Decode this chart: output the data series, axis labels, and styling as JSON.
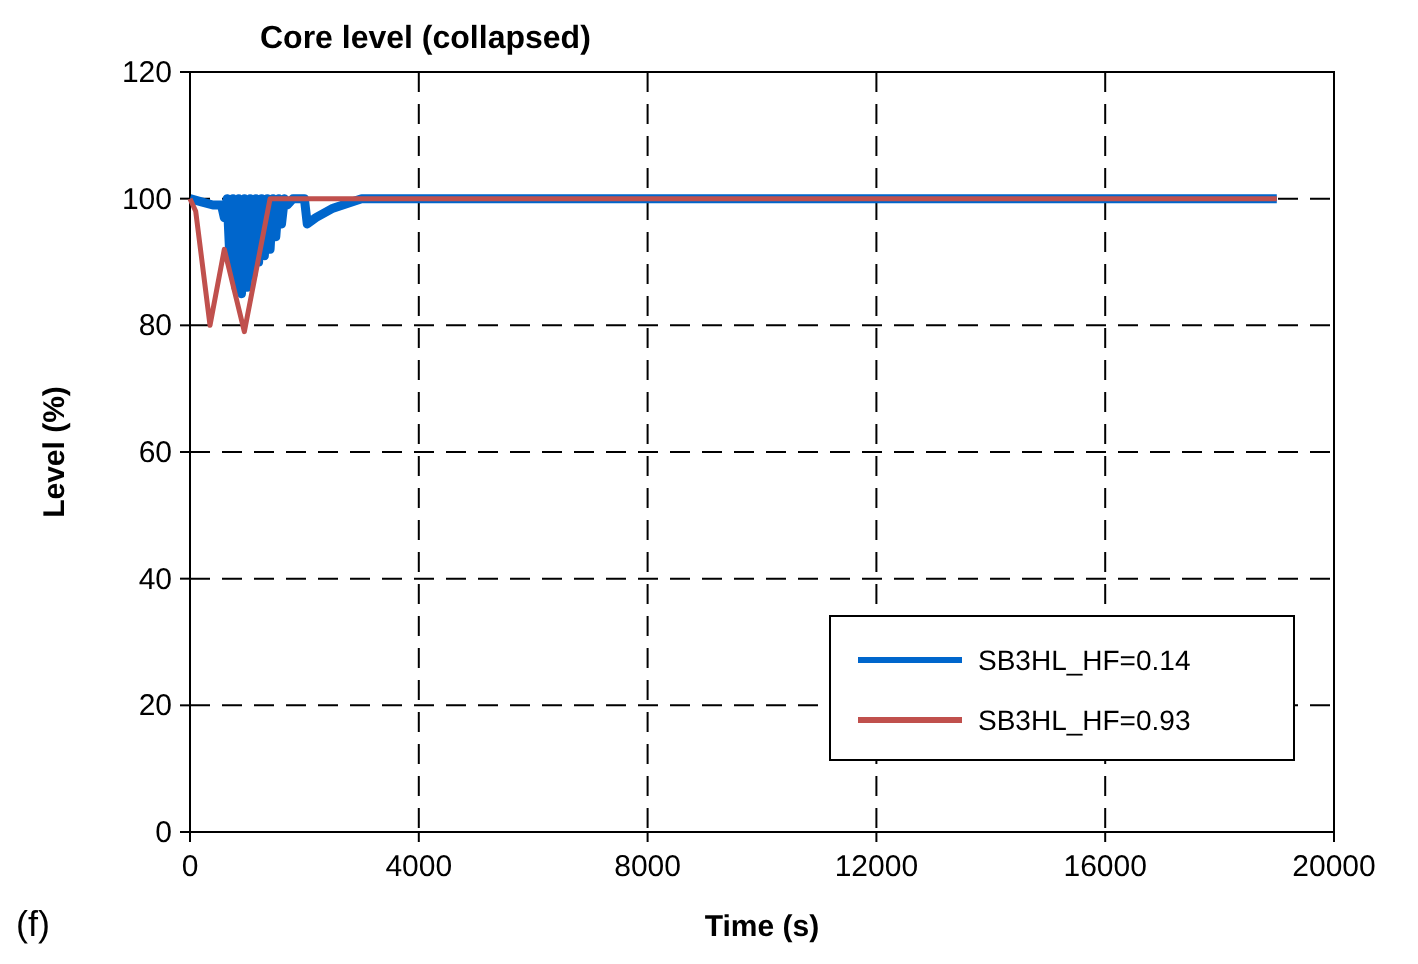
{
  "chart_data": {
    "type": "line",
    "title": "Core level (collapsed)",
    "xlabel": "Time (s)",
    "ylabel": "Level (%)",
    "annotations": [
      "(f)"
    ],
    "xlim": [
      0,
      20000
    ],
    "xticks": [
      0,
      4000,
      8000,
      12000,
      16000,
      20000
    ],
    "ylim": [
      0,
      120
    ],
    "yticks": [
      0,
      20,
      40,
      60,
      80,
      100,
      120
    ],
    "grid": true,
    "legend": "bottom right",
    "line_style": "solid",
    "series": [
      {
        "name": "SB3HL_HF=0.14",
        "color": "#0066cc",
        "x": [
          0,
          200,
          400,
          550,
          600,
          650,
          700,
          750,
          800,
          850,
          900,
          950,
          1000,
          1050,
          1100,
          1150,
          1200,
          1250,
          1300,
          1350,
          1400,
          1450,
          1500,
          1550,
          1600,
          1650,
          1700,
          1800,
          2000,
          2050,
          2200,
          2500,
          3000,
          19000
        ],
        "values": [
          100,
          99.5,
          99,
          99,
          97,
          100,
          90,
          100,
          86,
          100,
          85,
          100,
          86,
          100,
          88,
          100,
          90,
          100,
          91,
          100,
          92,
          100,
          94,
          100,
          96,
          100,
          99,
          100,
          100,
          96,
          97,
          98.5,
          100,
          100
        ]
      },
      {
        "name": "SB3HL_HF=0.93",
        "color": "#c0504d",
        "x": [
          0,
          100,
          350,
          600,
          950,
          1400,
          3000,
          19000
        ],
        "values": [
          100,
          98,
          80,
          92,
          79,
          100,
          100,
          100
        ]
      }
    ]
  }
}
